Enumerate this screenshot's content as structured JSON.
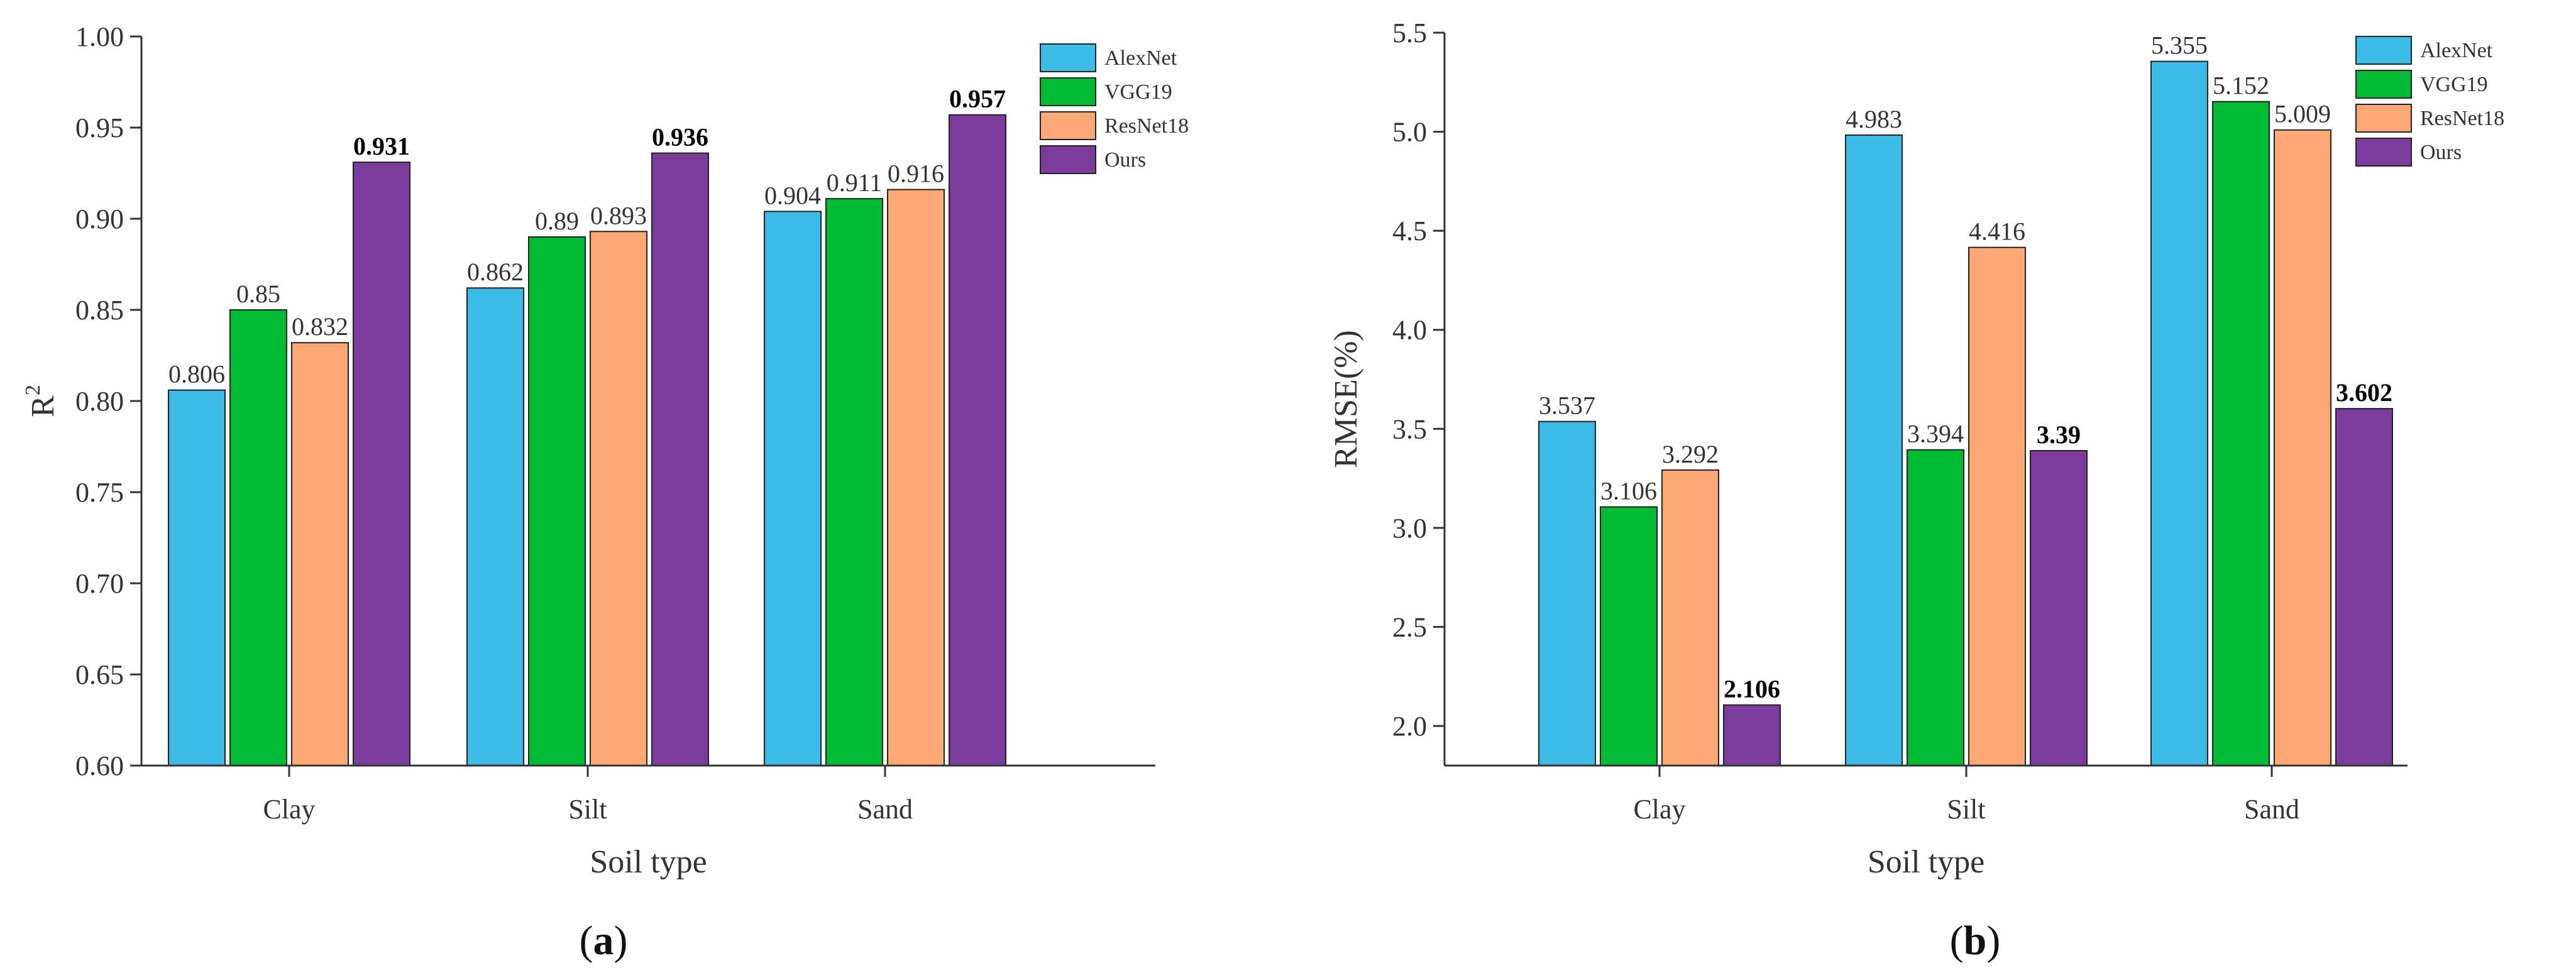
{
  "colors": {
    "AlexNet": "#3bbbe8",
    "VGG19": "#00bb33",
    "ResNet18": "#fba874",
    "Ours": "#7b3c9c",
    "axis": "#333333"
  },
  "chart_data": [
    {
      "type": "bar",
      "panel_open": "(",
      "panel_letter": "a",
      "panel_close": ")",
      "title": "",
      "xlabel": "Soil type",
      "ylabel_base": "R",
      "ylabel_sup": "2",
      "ylim": [
        0.6,
        1.0
      ],
      "yticks": [
        "0.60",
        "0.65",
        "0.70",
        "0.75",
        "0.80",
        "0.85",
        "0.90",
        "0.95",
        "1.00"
      ],
      "categories": [
        "Clay",
        "Silt",
        "Sand"
      ],
      "series": [
        {
          "name": "AlexNet",
          "values": [
            0.806,
            0.862,
            0.904
          ],
          "labels": [
            "0.806",
            "0.862",
            "0.904"
          ],
          "bold": false
        },
        {
          "name": "VGG19",
          "values": [
            0.85,
            0.89,
            0.911
          ],
          "labels": [
            "0.85",
            "0.89",
            "0.911"
          ],
          "bold": false
        },
        {
          "name": "ResNet18",
          "values": [
            0.832,
            0.893,
            0.916
          ],
          "labels": [
            "0.832",
            "0.893",
            "0.916"
          ],
          "bold": false
        },
        {
          "name": "Ours",
          "values": [
            0.931,
            0.936,
            0.957
          ],
          "labels": [
            "0.931",
            "0.936",
            "0.957"
          ],
          "bold": true
        }
      ],
      "legend": [
        "AlexNet",
        "VGG19",
        "ResNet18",
        "Ours"
      ],
      "legend_position": "top-right"
    },
    {
      "type": "bar",
      "panel_open": "(",
      "panel_letter": "b",
      "panel_close": ")",
      "title": "",
      "xlabel": "Soil type",
      "ylabel_base": "RMSE(%)",
      "ylabel_sup": "",
      "ylim": [
        1.8,
        5.5
      ],
      "yticks": [
        "2.0",
        "2.5",
        "3.0",
        "3.5",
        "4.0",
        "4.5",
        "5.0",
        "5.5"
      ],
      "ytick_values": [
        2.0,
        2.5,
        3.0,
        3.5,
        4.0,
        4.5,
        5.0,
        5.5
      ],
      "categories": [
        "Clay",
        "Silt",
        "Sand"
      ],
      "series": [
        {
          "name": "AlexNet",
          "values": [
            3.537,
            4.983,
            5.355
          ],
          "labels": [
            "3.537",
            "4.983",
            "5.355"
          ],
          "bold": false
        },
        {
          "name": "VGG19",
          "values": [
            3.106,
            3.394,
            5.152
          ],
          "labels": [
            "3.106",
            "3.394",
            "5.152"
          ],
          "bold": false
        },
        {
          "name": "ResNet18",
          "values": [
            3.292,
            4.416,
            5.009
          ],
          "labels": [
            "3.292",
            "4.416",
            "5.009"
          ],
          "bold": false
        },
        {
          "name": "Ours",
          "values": [
            2.106,
            3.39,
            3.602
          ],
          "labels": [
            "2.106",
            "3.39",
            "3.602"
          ],
          "bold": true
        }
      ],
      "legend": [
        "AlexNet",
        "VGG19",
        "ResNet18",
        "Ours"
      ],
      "legend_position": "top-right"
    }
  ]
}
